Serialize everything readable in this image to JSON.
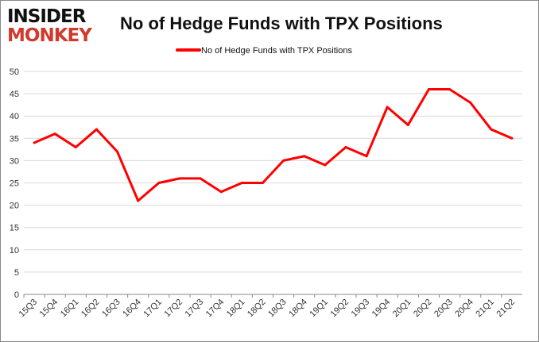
{
  "logo": {
    "line1": "INSIDER",
    "line2": "MONKEY"
  },
  "chart_data": {
    "type": "line",
    "title": "No of Hedge Funds with TPX Positions",
    "xlabel": "",
    "ylabel": "",
    "categories": [
      "15Q3",
      "15Q4",
      "16Q1",
      "16Q2",
      "16Q3",
      "16Q4",
      "17Q1",
      "17Q2",
      "17Q3",
      "17Q4",
      "18Q1",
      "18Q2",
      "18Q3",
      "18Q4",
      "19Q1",
      "19Q2",
      "19Q3",
      "19Q4",
      "20Q1",
      "20Q2",
      "20Q3",
      "20Q4",
      "21Q1",
      "21Q2"
    ],
    "series": [
      {
        "name": "No of Hedge Funds with TPX Positions",
        "color": "#ff0000",
        "values": [
          34,
          36,
          33,
          37,
          32,
          21,
          25,
          26,
          26,
          23,
          25,
          25,
          30,
          31,
          29,
          33,
          31,
          42,
          38,
          46,
          46,
          43,
          37,
          35
        ]
      }
    ],
    "ylim": [
      0,
      50
    ],
    "yticks": [
      0,
      5,
      10,
      15,
      20,
      25,
      30,
      35,
      40,
      45,
      50
    ],
    "grid": true,
    "legend": "top"
  }
}
